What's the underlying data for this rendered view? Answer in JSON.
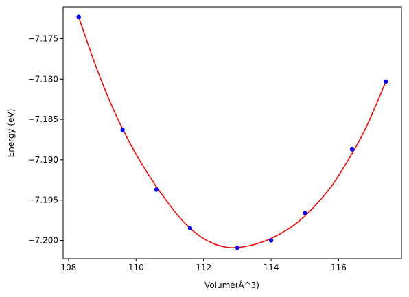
{
  "chart_data": {
    "type": "scatter",
    "title": "",
    "xlabel": "Volume(Å^3)",
    "ylabel": "Energy (eV)",
    "xlim": [
      107.84,
      117.86
    ],
    "ylim": [
      -7.20225,
      -7.17105
    ],
    "xticks": [
      108,
      110,
      112,
      114,
      116
    ],
    "xtick_labels": [
      "108",
      "110",
      "112",
      "114",
      "116"
    ],
    "yticks": [
      -7.175,
      -7.18,
      -7.185,
      -7.19,
      -7.195,
      -7.2
    ],
    "ytick_labels": [
      "−7.175",
      "−7.180",
      "−7.185",
      "−7.190",
      "−7.195",
      "−7.200"
    ],
    "grid": false,
    "series": [
      {
        "kind": "points",
        "color": "#0000ff",
        "x": [
          108.3,
          109.6,
          110.6,
          111.6,
          113.0,
          114.0,
          115.0,
          116.4,
          117.4
        ],
        "y": [
          -7.1723,
          -7.1863,
          -7.1937,
          -7.1985,
          -7.2009,
          -7.2,
          -7.1966,
          -7.1887,
          -7.1803
        ]
      },
      {
        "kind": "fit-curve",
        "color": "#ff0000",
        "x": [
          108.3,
          108.8,
          109.3,
          109.8,
          110.3,
          110.8,
          111.3,
          111.8,
          112.3,
          112.8,
          113.3,
          113.8,
          114.3,
          114.8,
          115.3,
          115.8,
          116.3,
          116.8,
          117.4
        ],
        "y": [
          -7.1723,
          -7.1783,
          -7.1835,
          -7.1878,
          -7.1914,
          -7.1945,
          -7.1972,
          -7.1992,
          -7.2004,
          -7.2009,
          -7.2007,
          -7.2001,
          -7.1991,
          -7.1977,
          -7.1957,
          -7.1932,
          -7.1899,
          -7.1861,
          -7.1803
        ]
      }
    ]
  }
}
